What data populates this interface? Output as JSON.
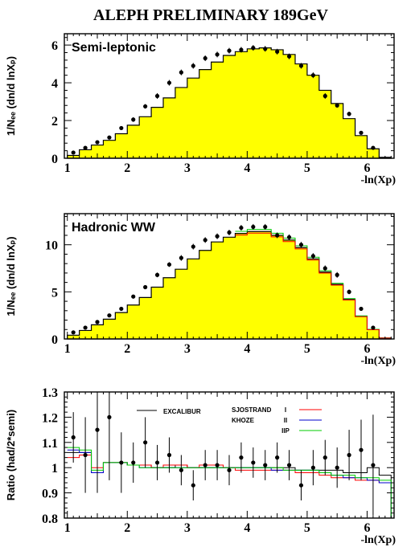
{
  "title": "ALEPH PRELIMINARY 189GeV",
  "colors": {
    "fill": "#ffff00",
    "histogram": "#000000",
    "excalibur": "#000000",
    "sjostrand_i": "#ff0000",
    "sjostrand_ii": "#0000cc",
    "khoze_iip": "#00cc00"
  },
  "chart_data": [
    {
      "type": "bar",
      "panel_label": "Semi-leptonic",
      "xlabel": "-ln(Xp)",
      "ylabel": "1/Nₑₑ (dn/d lnXₚ)",
      "xlim": [
        0.95,
        6.45
      ],
      "ylim": [
        0,
        6.6
      ],
      "xticks": [
        1,
        2,
        3,
        4,
        5,
        6
      ],
      "yticks": [
        0,
        2,
        4,
        6
      ],
      "bin_edges": [
        1.0,
        1.2,
        1.4,
        1.6,
        1.8,
        2.0,
        2.2,
        2.4,
        2.6,
        2.8,
        3.0,
        3.2,
        3.4,
        3.6,
        3.8,
        4.0,
        4.2,
        4.4,
        4.6,
        4.8,
        5.0,
        5.2,
        5.4,
        5.6,
        5.8,
        6.0,
        6.2,
        6.4
      ],
      "histogram_values": [
        0.15,
        0.45,
        0.7,
        0.95,
        1.3,
        1.75,
        2.2,
        2.7,
        3.2,
        3.75,
        4.25,
        4.7,
        5.1,
        5.45,
        5.65,
        5.8,
        5.85,
        5.75,
        5.5,
        5.0,
        4.4,
        3.6,
        2.9,
        2.1,
        1.2,
        0.5,
        0.05
      ],
      "data_points": {
        "x": [
          1.1,
          1.3,
          1.5,
          1.7,
          1.9,
          2.1,
          2.3,
          2.5,
          2.7,
          2.9,
          3.1,
          3.3,
          3.5,
          3.7,
          3.9,
          4.1,
          4.3,
          4.5,
          4.7,
          4.9,
          5.1,
          5.3,
          5.5,
          5.7,
          5.9,
          6.1
        ],
        "y": [
          0.3,
          0.55,
          0.85,
          1.1,
          1.6,
          2.05,
          2.75,
          3.3,
          4.0,
          4.55,
          4.9,
          5.3,
          5.5,
          5.7,
          5.75,
          5.85,
          5.8,
          5.65,
          5.4,
          4.9,
          4.4,
          3.3,
          2.8,
          2.35,
          1.35,
          0.55
        ],
        "err": [
          0.05,
          0.07,
          0.08,
          0.1,
          0.1,
          0.12,
          0.12,
          0.15,
          0.15,
          0.15,
          0.15,
          0.15,
          0.15,
          0.15,
          0.15,
          0.15,
          0.15,
          0.15,
          0.15,
          0.15,
          0.15,
          0.15,
          0.12,
          0.12,
          0.1,
          0.08
        ]
      }
    },
    {
      "type": "bar",
      "panel_label": "Hadronic WW",
      "xlabel": "-ln(Xp)",
      "ylabel": "1/Nₑₑ (dn/d lnXₚ)",
      "xlim": [
        0.95,
        6.45
      ],
      "ylim": [
        0,
        13.3
      ],
      "xticks": [
        1,
        2,
        3,
        4,
        5,
        6
      ],
      "yticks": [
        0,
        5,
        10
      ],
      "bin_edges": [
        1.0,
        1.2,
        1.4,
        1.6,
        1.8,
        2.0,
        2.2,
        2.4,
        2.6,
        2.8,
        3.0,
        3.2,
        3.4,
        3.6,
        3.8,
        4.0,
        4.2,
        4.4,
        4.6,
        4.8,
        5.0,
        5.2,
        5.4,
        5.6,
        5.8,
        6.0,
        6.2,
        6.4
      ],
      "histogram_values": [
        0.4,
        0.9,
        1.5,
        2.1,
        2.8,
        3.6,
        4.4,
        5.5,
        6.5,
        7.4,
        8.5,
        9.4,
        10.3,
        10.8,
        11.2,
        11.4,
        11.4,
        11.0,
        10.5,
        9.7,
        8.5,
        7.1,
        5.8,
        4.2,
        2.4,
        1.0,
        0.1
      ],
      "data_points": {
        "x": [
          1.1,
          1.3,
          1.5,
          1.7,
          1.9,
          2.1,
          2.3,
          2.5,
          2.7,
          2.9,
          3.1,
          3.3,
          3.5,
          3.7,
          3.9,
          4.1,
          4.3,
          4.5,
          4.7,
          4.9,
          5.1,
          5.3,
          5.5,
          5.7,
          5.9,
          6.1
        ],
        "y": [
          0.7,
          1.2,
          1.8,
          2.5,
          3.2,
          4.5,
          5.5,
          6.8,
          7.9,
          8.6,
          9.8,
          10.5,
          10.9,
          11.3,
          11.8,
          11.9,
          11.9,
          11.0,
          10.8,
          10.0,
          8.8,
          7.5,
          6.8,
          5.0,
          3.2,
          1.2
        ],
        "err": [
          0.1,
          0.1,
          0.12,
          0.15,
          0.15,
          0.2,
          0.2,
          0.25,
          0.25,
          0.3,
          0.3,
          0.3,
          0.3,
          0.3,
          0.3,
          0.3,
          0.3,
          0.3,
          0.3,
          0.3,
          0.3,
          0.3,
          0.3,
          0.25,
          0.2,
          0.15
        ]
      }
    },
    {
      "type": "line",
      "xlabel": "-ln(Xp)",
      "ylabel": "Ratio (had/2*semi)",
      "xlim": [
        0.95,
        6.45
      ],
      "ylim": [
        0.8,
        1.3
      ],
      "xticks": [
        1,
        2,
        3,
        4,
        5,
        6
      ],
      "yticks": [
        0.8,
        0.9,
        1,
        1.1,
        1.2,
        1.3
      ],
      "ytick_labels": [
        "0.8",
        "0.9",
        "1",
        "1.1",
        "1.2",
        "1.3"
      ],
      "bin_edges": [
        1.0,
        1.2,
        1.4,
        1.6,
        1.8,
        2.0,
        2.2,
        2.4,
        2.6,
        2.8,
        3.0,
        3.2,
        3.4,
        3.6,
        3.8,
        4.0,
        4.2,
        4.4,
        4.6,
        4.8,
        5.0,
        5.2,
        5.4,
        5.6,
        5.8,
        6.0,
        6.2,
        6.4
      ],
      "legend": [
        {
          "label": "EXCALIBUR",
          "sub": ""
        },
        {
          "label": "SJOSTRAND",
          "sub": "I"
        },
        {
          "label": "KHOZE",
          "sub": "II"
        },
        {
          "label": "",
          "sub": "IIP"
        }
      ],
      "series": [
        {
          "key": "excalibur",
          "values": [
            1.06,
            1.06,
            0.98,
            1.02,
            1.02,
            1.01,
            1.01,
            1.0,
            1.0,
            1.01,
            1.0,
            1.0,
            1.0,
            1.0,
            1.0,
            1.0,
            1.0,
            1.0,
            1.0,
            0.99,
            0.99,
            0.99,
            0.99,
            0.98,
            0.98,
            1.0,
            0.97
          ]
        },
        {
          "key": "sjostrand_i",
          "values": [
            1.04,
            1.05,
            1.0,
            1.02,
            1.02,
            1.01,
            1.01,
            1.0,
            1.01,
            1.01,
            1.0,
            1.01,
            1.01,
            1.0,
            0.99,
            0.99,
            0.99,
            0.99,
            0.99,
            0.98,
            0.98,
            0.97,
            0.96,
            0.96,
            0.95,
            0.95,
            0.94
          ]
        },
        {
          "key": "sjostrand_ii",
          "values": [
            1.07,
            1.06,
            0.98,
            1.02,
            1.02,
            1.01,
            1.0,
            1.0,
            1.0,
            1.0,
            1.0,
            1.0,
            1.0,
            1.0,
            1.0,
            1.0,
            1.0,
            0.99,
            0.99,
            0.99,
            0.99,
            0.98,
            0.97,
            0.96,
            0.96,
            0.95,
            0.94
          ]
        },
        {
          "key": "khoze_iip",
          "values": [
            1.08,
            1.07,
            0.99,
            1.02,
            1.02,
            1.01,
            1.0,
            1.0,
            1.0,
            1.0,
            1.0,
            1.0,
            1.0,
            1.0,
            1.0,
            1.0,
            1.0,
            1.0,
            0.99,
            0.99,
            0.99,
            0.98,
            0.97,
            0.97,
            0.96,
            0.96,
            0.95
          ]
        }
      ],
      "data_points": {
        "x": [
          1.1,
          1.3,
          1.5,
          1.7,
          1.9,
          2.1,
          2.3,
          2.5,
          2.7,
          2.9,
          3.1,
          3.3,
          3.5,
          3.7,
          3.9,
          4.1,
          4.3,
          4.5,
          4.7,
          4.9,
          5.1,
          5.3,
          5.5,
          5.7,
          5.9,
          6.1
        ],
        "y": [
          1.12,
          1.05,
          1.15,
          1.2,
          1.02,
          1.02,
          1.1,
          1.02,
          1.05,
          0.99,
          0.93,
          1.01,
          1.01,
          0.99,
          1.04,
          1.02,
          1.01,
          1.04,
          1.01,
          0.93,
          1.0,
          1.04,
          1.0,
          1.05,
          1.07,
          1.01
        ],
        "err": [
          0.1,
          0.15,
          0.25,
          0.25,
          0.12,
          0.08,
          0.1,
          0.07,
          0.07,
          0.06,
          0.06,
          0.06,
          0.06,
          0.06,
          0.06,
          0.06,
          0.06,
          0.06,
          0.06,
          0.06,
          0.07,
          0.07,
          0.08,
          0.1,
          0.12,
          0.2
        ]
      }
    }
  ]
}
